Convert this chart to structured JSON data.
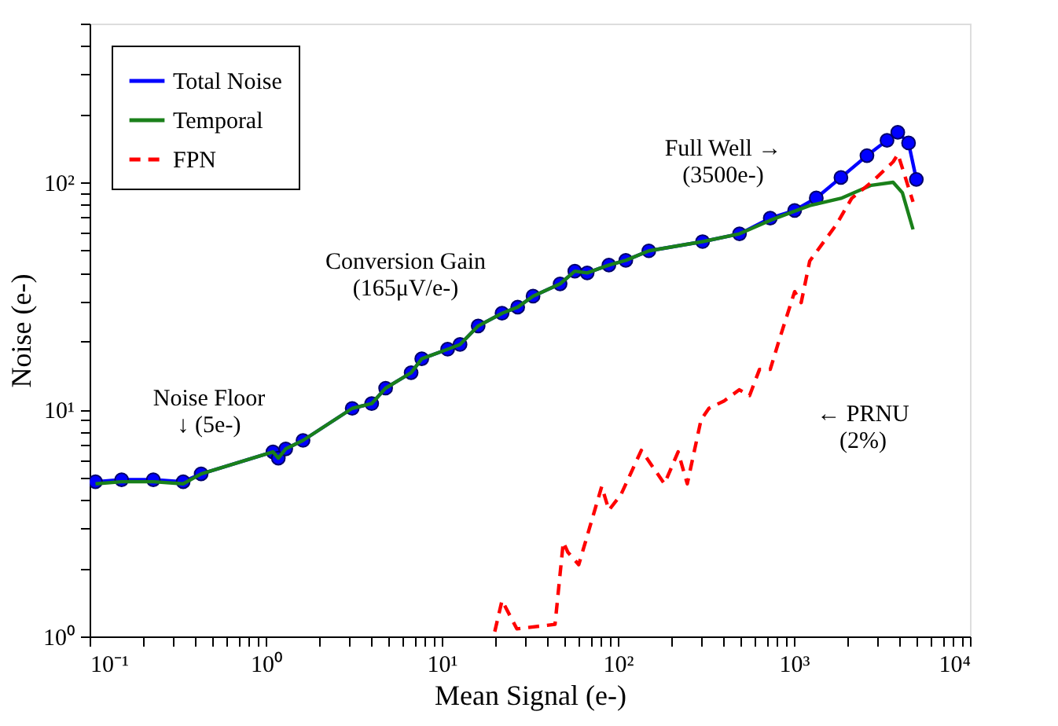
{
  "chart_data": {
    "type": "line",
    "xlabel": "Mean Signal (e-)",
    "ylabel": "Noise (e-)",
    "log": "xy",
    "grid": false,
    "legend": "top left",
    "xlim": [
      0.1,
      10000
    ],
    "ylim": [
      1,
      500
    ],
    "xticks": [
      {
        "value": 0.1,
        "label": "10⁻¹"
      },
      {
        "value": 0.2,
        "label": null
      },
      {
        "value": 0.3,
        "label": null
      },
      {
        "value": 0.4,
        "label": null
      },
      {
        "value": 0.5,
        "label": null
      },
      {
        "value": 0.6,
        "label": null
      },
      {
        "value": 0.7,
        "label": null
      },
      {
        "value": 0.8,
        "label": null
      },
      {
        "value": 0.9,
        "label": null
      },
      {
        "value": 1,
        "label": "10⁰"
      },
      {
        "value": 2,
        "label": null
      },
      {
        "value": 3,
        "label": null
      },
      {
        "value": 4,
        "label": null
      },
      {
        "value": 5,
        "label": null
      },
      {
        "value": 6,
        "label": null
      },
      {
        "value": 7,
        "label": null
      },
      {
        "value": 8,
        "label": null
      },
      {
        "value": 9,
        "label": null
      },
      {
        "value": 10,
        "label": "10¹"
      },
      {
        "value": 20,
        "label": null
      },
      {
        "value": 30,
        "label": null
      },
      {
        "value": 40,
        "label": null
      },
      {
        "value": 50,
        "label": null
      },
      {
        "value": 60,
        "label": null
      },
      {
        "value": 70,
        "label": null
      },
      {
        "value": 80,
        "label": null
      },
      {
        "value": 90,
        "label": null
      },
      {
        "value": 100,
        "label": "10²"
      },
      {
        "value": 200,
        "label": null
      },
      {
        "value": 300,
        "label": null
      },
      {
        "value": 400,
        "label": null
      },
      {
        "value": 500,
        "label": null
      },
      {
        "value": 600,
        "label": null
      },
      {
        "value": 700,
        "label": null
      },
      {
        "value": 800,
        "label": null
      },
      {
        "value": 900,
        "label": null
      },
      {
        "value": 1000,
        "label": "10³"
      },
      {
        "value": 2000,
        "label": null
      },
      {
        "value": 3000,
        "label": null
      },
      {
        "value": 4000,
        "label": null
      },
      {
        "value": 5000,
        "label": null
      },
      {
        "value": 6000,
        "label": null
      },
      {
        "value": 7000,
        "label": null
      },
      {
        "value": 8000,
        "label": null
      },
      {
        "value": 9000,
        "label": null
      },
      {
        "value": 10000,
        "label": "10⁴"
      }
    ],
    "yticks": [
      {
        "value": 1,
        "label": "10⁰"
      },
      {
        "value": 2,
        "label": null
      },
      {
        "value": 3,
        "label": null
      },
      {
        "value": 4,
        "label": null
      },
      {
        "value": 5,
        "label": null
      },
      {
        "value": 6,
        "label": null
      },
      {
        "value": 7,
        "label": null
      },
      {
        "value": 8,
        "label": null
      },
      {
        "value": 9,
        "label": null
      },
      {
        "value": 10,
        "label": "10¹"
      },
      {
        "value": 20,
        "label": null
      },
      {
        "value": 30,
        "label": null
      },
      {
        "value": 40,
        "label": null
      },
      {
        "value": 50,
        "label": null
      },
      {
        "value": 60,
        "label": null
      },
      {
        "value": 70,
        "label": null
      },
      {
        "value": 80,
        "label": null
      },
      {
        "value": 90,
        "label": null
      },
      {
        "value": 100,
        "label": "10²"
      },
      {
        "value": 200,
        "label": null
      },
      {
        "value": 300,
        "label": null
      },
      {
        "value": 400,
        "label": null
      },
      {
        "value": 500,
        "label": null
      }
    ],
    "series": [
      {
        "name": "Total Noise",
        "color": "#0000ff",
        "marker": "circle",
        "line_style": "solid",
        "x": [
          0.108,
          0.152,
          0.23,
          0.34,
          0.43,
          1.1,
          1.18,
          1.3,
          1.63,
          3.1,
          4.0,
          4.8,
          6.7,
          7.7,
          10.8,
          12.7,
          16.1,
          22,
          27,
          33,
          47,
          57,
          67,
          89,
          111,
          150,
          303,
          491,
          734,
          1010,
          1340,
          1850,
          2600,
          3380,
          3890,
          4480,
          4960
        ],
        "values": [
          4.8,
          4.9,
          4.9,
          4.8,
          5.2,
          6.5,
          6.1,
          6.7,
          7.3,
          10.1,
          10.6,
          12.4,
          14.5,
          16.7,
          18.4,
          19.3,
          23.3,
          26.5,
          28.2,
          31.5,
          35.7,
          40.6,
          39.9,
          43.2,
          45.3,
          49.9,
          54.8,
          59.3,
          69.5,
          75.2,
          85.3,
          105,
          131,
          153,
          166,
          149,
          103
        ]
      },
      {
        "name": "Temporal",
        "color": "#1a801a",
        "marker": "none",
        "line_style": "solid",
        "x": [
          0.108,
          0.152,
          0.23,
          0.34,
          0.43,
          1.1,
          1.18,
          1.3,
          1.63,
          3.1,
          4.0,
          4.8,
          6.7,
          7.7,
          10.8,
          12.7,
          16.1,
          22,
          27,
          33,
          47,
          57,
          67,
          89,
          111,
          150,
          303,
          491,
          734,
          1230,
          1850,
          2750,
          3660,
          4130,
          4750
        ],
        "values": [
          4.7,
          4.8,
          4.8,
          4.7,
          5.2,
          6.5,
          6.1,
          6.7,
          7.3,
          10.1,
          10.6,
          12.4,
          14.5,
          16.7,
          18.4,
          19.3,
          23.3,
          26.5,
          28.2,
          31.5,
          35.7,
          40.6,
          39.9,
          43.2,
          45.3,
          49.9,
          54.8,
          59.3,
          68,
          79,
          85,
          97,
          100,
          90,
          62
        ]
      },
      {
        "name": "FPN",
        "color": "#ff0000",
        "marker": "none",
        "line_style": "dashed",
        "x": [
          20,
          22,
          26.7,
          44,
          49,
          52,
          60,
          81,
          89,
          104,
          136,
          184,
          220,
          248,
          297,
          329,
          402,
          490,
          560,
          638,
          734,
          830,
          1010,
          1100,
          1230,
          1740,
          2130,
          2760,
          3660,
          3900,
          4750
        ],
        "values": [
          1.05,
          1.44,
          1.08,
          1.13,
          2.6,
          2.35,
          2.07,
          4.57,
          3.6,
          4.2,
          6.6,
          4.7,
          6.5,
          4.7,
          9.0,
          10.1,
          10.9,
          12.2,
          11.5,
          15.0,
          15,
          20.5,
          33,
          29.5,
          45,
          65,
          85,
          100,
          123,
          133,
          82
        ]
      }
    ],
    "annotations": [
      "Noise Floor\n↓ (5e-)",
      "Conversion Gain\n(165μV/e-)",
      "Full Well →\n(3500e-)",
      "← PRNU\n(2%)"
    ]
  }
}
